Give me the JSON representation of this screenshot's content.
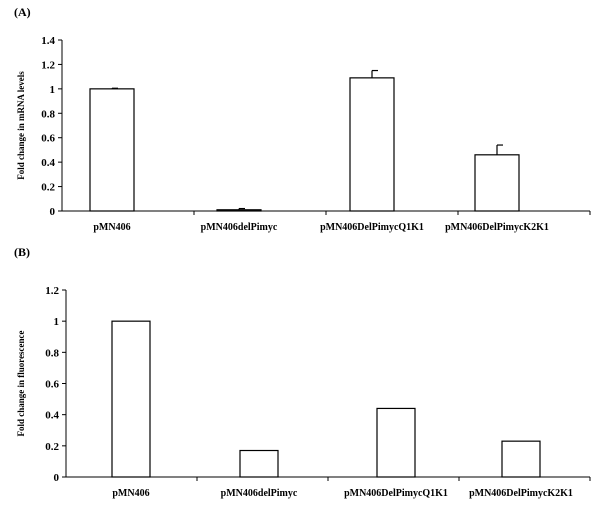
{
  "chart_data": [
    {
      "panel_label": "(A)",
      "type": "bar",
      "categories": [
        "pMN406",
        "pMN406delPimyc",
        "pMN406DelPimycQ1K1",
        "pMN406DelPimycK2K1"
      ],
      "values": [
        1.0,
        0.01,
        1.09,
        0.46
      ],
      "errors": [
        0.005,
        0.01,
        0.06,
        0.08
      ],
      "ylabel": "Fold change in mRNA levels",
      "ylim": [
        0,
        1.4
      ],
      "yticks": [
        "0",
        "0.2",
        "0.4",
        "0.6",
        "0.8",
        "1",
        "1.2",
        "1.4"
      ],
      "grid": false
    },
    {
      "panel_label": "(B)",
      "type": "bar",
      "categories": [
        "pMN406",
        "pMN406delPimyc",
        "pMN406DelPimycQ1K1",
        "pMN406DelPimycK2K1"
      ],
      "values": [
        1.0,
        0.17,
        0.44,
        0.23
      ],
      "ylabel": "Fold change in fluorescence",
      "ylim": [
        0,
        1.2
      ],
      "yticks": [
        "0",
        "0.2",
        "0.4",
        "0.6",
        "0.8",
        "1",
        "1.2"
      ],
      "grid": false
    }
  ]
}
